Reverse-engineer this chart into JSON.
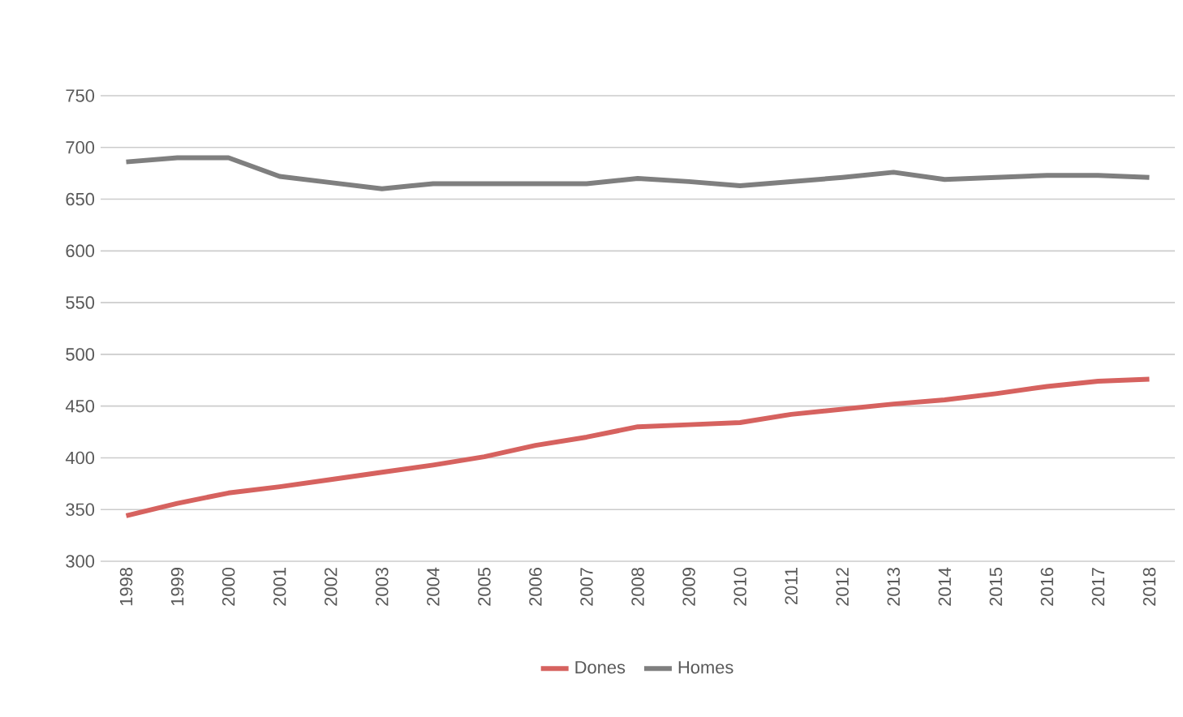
{
  "chart_data": {
    "type": "line",
    "categories": [
      "1998",
      "1999",
      "2000",
      "2001",
      "2002",
      "2003",
      "2004",
      "2005",
      "2006",
      "2007",
      "2008",
      "2009",
      "2010",
      "2011",
      "2012",
      "2013",
      "2014",
      "2015",
      "2016",
      "2017",
      "2018"
    ],
    "series": [
      {
        "name": "Dones",
        "color": "#d6625f",
        "values": [
          344,
          356,
          366,
          372,
          379,
          386,
          393,
          401,
          412,
          420,
          430,
          432,
          434,
          442,
          447,
          452,
          456,
          462,
          469,
          474,
          476
        ]
      },
      {
        "name": "Homes",
        "color": "#7f7f7f",
        "values": [
          686,
          690,
          690,
          672,
          666,
          660,
          665,
          665,
          665,
          665,
          670,
          667,
          663,
          667,
          671,
          676,
          669,
          671,
          673,
          673,
          671
        ]
      }
    ],
    "ylim": [
      300,
      750
    ],
    "yticks": [
      300,
      350,
      400,
      450,
      500,
      550,
      600,
      650,
      700,
      750
    ],
    "grid": "y",
    "legend": "bottom",
    "marker": "none",
    "line_style": "solid"
  }
}
